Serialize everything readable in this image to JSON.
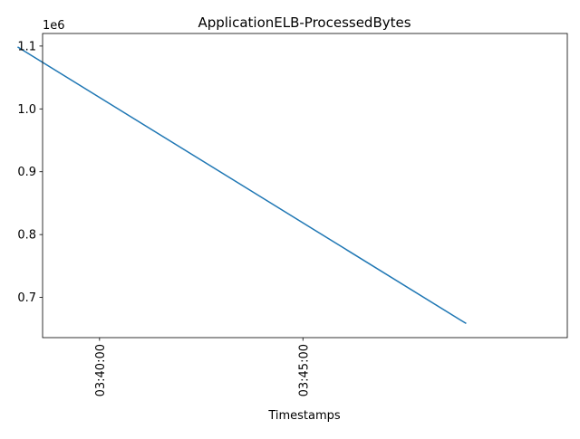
{
  "chart_data": {
    "type": "line",
    "title": "ApplicationELB-ProcessedBytes",
    "xlabel": "Timestamps",
    "ylabel": "",
    "y_scale_note": "1e6",
    "x_unit": "minutes since 03:35:00",
    "xlim": [
      3.6,
      16.5
    ],
    "ylim": [
      0.636,
      1.12
    ],
    "x_ticks": [
      {
        "value": 5,
        "label": "03:40:00"
      },
      {
        "value": 10,
        "label": "03:45:00"
      }
    ],
    "y_ticks": [
      {
        "value": 0.7,
        "label": "0.7"
      },
      {
        "value": 0.8,
        "label": "0.8"
      },
      {
        "value": 0.9,
        "label": "0.9"
      },
      {
        "value": 1.0,
        "label": "1.0"
      },
      {
        "value": 1.1,
        "label": "1.1"
      }
    ],
    "series": [
      {
        "name": "ProcessedBytes",
        "color": "#1f77b4",
        "x": [
          3.0,
          14.0
        ],
        "y": [
          1.098,
          0.659
        ]
      }
    ],
    "grid": false,
    "legend": "none"
  }
}
